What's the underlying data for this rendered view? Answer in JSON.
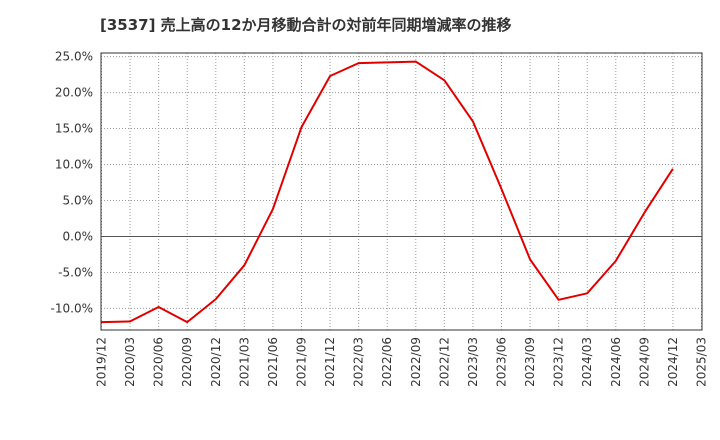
{
  "chart_data": {
    "type": "line",
    "title": "[3537]  売上高の12か月移動合計の対前年同期増減率の推移",
    "xlabel": "",
    "ylabel": "",
    "ylim": [
      -13,
      25.5
    ],
    "y_ticks": [
      -10,
      -5,
      0,
      5,
      10,
      15,
      20,
      25
    ],
    "y_tick_labels": [
      "-10.0%",
      "-5.0%",
      "0.0%",
      "5.0%",
      "10.0%",
      "15.0%",
      "20.0%",
      "25.0%"
    ],
    "x_ticks": [
      "2019/12",
      "2020/03",
      "2020/06",
      "2020/09",
      "2020/12",
      "2021/03",
      "2021/06",
      "2021/09",
      "2021/12",
      "2022/03",
      "2022/06",
      "2022/09",
      "2022/12",
      "2023/03",
      "2023/06",
      "2023/09",
      "2023/12",
      "2024/03",
      "2024/06",
      "2024/09",
      "2024/12",
      "2025/03"
    ],
    "grid": true,
    "legend": "none",
    "line_color": "#e00000",
    "series": [
      {
        "name": "対前年同期増減率",
        "categories": [
          "2019/12",
          "2020/03",
          "2020/06",
          "2020/09",
          "2020/12",
          "2021/03",
          "2021/06",
          "2021/09",
          "2021/12",
          "2022/03",
          "2022/06",
          "2022/09",
          "2022/12",
          "2023/03",
          "2023/06",
          "2023/09",
          "2023/12",
          "2024/03",
          "2024/06",
          "2024/09",
          "2024/12"
        ],
        "values": [
          -11.9,
          -11.8,
          -9.8,
          -11.9,
          -8.7,
          -4.0,
          3.8,
          15.2,
          22.3,
          24.1,
          24.2,
          24.3,
          21.7,
          16.0,
          6.6,
          -3.2,
          -8.8,
          -7.9,
          -3.4,
          3.3,
          9.4
        ]
      }
    ]
  }
}
